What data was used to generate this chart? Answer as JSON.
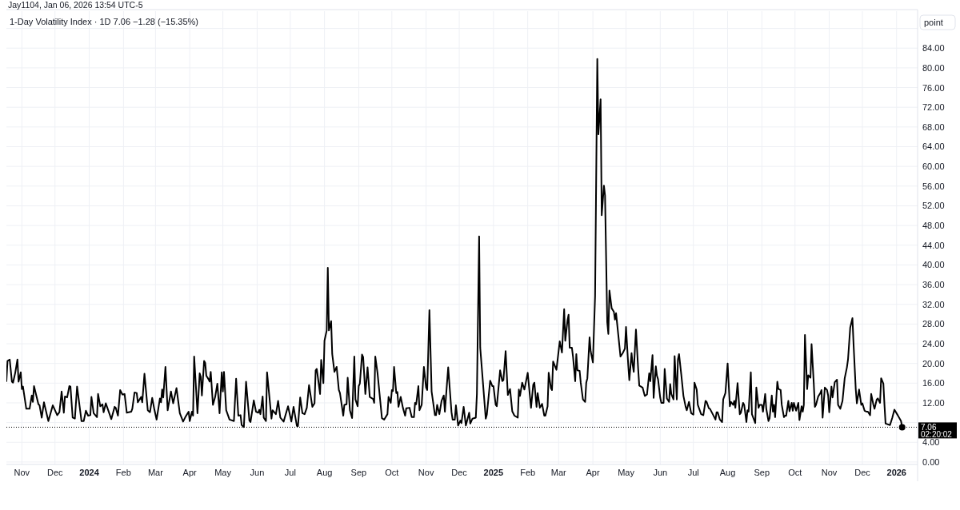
{
  "chart_data": {
    "type": "line",
    "title": "1-Day Volatility Index · 1D 7.06 −1.28 (−15.35%)",
    "subtitle": "Jay1104, Jan 06, 2026 13:54 UTC-5",
    "ylabel": "point",
    "annotations": [
      "02:20:02"
    ],
    "xlim": [
      "2023-10-18",
      "2026-01-20"
    ],
    "xticks": [
      {
        "value": "2023-11-01",
        "label": "Nov"
      },
      {
        "value": "2023-12-01",
        "label": "Dec"
      },
      {
        "value": "2024-01-01",
        "label": "2024"
      },
      {
        "value": "2024-02-01",
        "label": "Feb"
      },
      {
        "value": "2024-03-01",
        "label": "Mar"
      },
      {
        "value": "2024-04-01",
        "label": "Apr"
      },
      {
        "value": "2024-05-01",
        "label": "May"
      },
      {
        "value": "2024-06-01",
        "label": "Jun"
      },
      {
        "value": "2024-07-01",
        "label": "Jul"
      },
      {
        "value": "2024-08-01",
        "label": "Aug"
      },
      {
        "value": "2024-09-01",
        "label": "Sep"
      },
      {
        "value": "2024-10-01",
        "label": "Oct"
      },
      {
        "value": "2024-11-01",
        "label": "Nov"
      },
      {
        "value": "2024-12-01",
        "label": "Dec"
      },
      {
        "value": "2025-01-01",
        "label": "2025"
      },
      {
        "value": "2025-02-01",
        "label": "Feb"
      },
      {
        "value": "2025-03-01",
        "label": "Mar"
      },
      {
        "value": "2025-04-01",
        "label": "Apr"
      },
      {
        "value": "2025-05-01",
        "label": "May"
      },
      {
        "value": "2025-06-01",
        "label": "Jun"
      },
      {
        "value": "2025-07-01",
        "label": "Jul"
      },
      {
        "value": "2025-08-01",
        "label": "Aug"
      },
      {
        "value": "2025-09-01",
        "label": "Sep"
      },
      {
        "value": "2025-10-01",
        "label": "Oct"
      },
      {
        "value": "2025-11-01",
        "label": "Nov"
      },
      {
        "value": "2025-12-01",
        "label": "Dec"
      },
      {
        "value": "2026-01-01",
        "label": "2026"
      }
    ],
    "ylim": [
      -0.5,
      91.5
    ],
    "yticks": [
      {
        "value": 0,
        "label": "0.00"
      },
      {
        "value": 4,
        "label": "4.00"
      },
      {
        "value": 8,
        "label": null
      },
      {
        "value": 12,
        "label": "12.00"
      },
      {
        "value": 16,
        "label": "16.00"
      },
      {
        "value": 20,
        "label": "20.00"
      },
      {
        "value": 24,
        "label": "24.00"
      },
      {
        "value": 28,
        "label": "28.00"
      },
      {
        "value": 32,
        "label": "32.00"
      },
      {
        "value": 36,
        "label": "36.00"
      },
      {
        "value": 40,
        "label": "40.00"
      },
      {
        "value": 44,
        "label": "44.00"
      },
      {
        "value": 48,
        "label": "48.00"
      },
      {
        "value": 52,
        "label": "52.00"
      },
      {
        "value": 56,
        "label": "56.00"
      },
      {
        "value": 60,
        "label": "60.00"
      },
      {
        "value": 64,
        "label": "64.00"
      },
      {
        "value": 68,
        "label": "68.00"
      },
      {
        "value": 72,
        "label": "72.00"
      },
      {
        "value": 76,
        "label": "76.00"
      },
      {
        "value": 80,
        "label": "80.00"
      },
      {
        "value": 84,
        "label": "84.00"
      },
      {
        "value": 88,
        "label": null
      }
    ],
    "grid": true,
    "ref_lines": [
      {
        "axis": "y",
        "value": 7.06,
        "label": "7.06",
        "color": "#000000",
        "line_style": "dotted"
      }
    ],
    "series": [
      {
        "color": "#000000",
        "x": [
          "2023-10-18",
          "2023-10-19",
          "2023-10-21",
          "2023-10-23",
          "2023-10-24",
          "2023-10-26",
          "2023-10-28",
          "2023-10-29",
          "2023-10-31",
          "2023-11-01",
          "2023-11-02",
          "2023-11-05",
          "2023-11-08",
          "2023-11-10",
          "2023-11-11",
          "2023-11-12",
          "2023-11-16",
          "2023-11-17",
          "2023-11-19",
          "2023-11-21",
          "2023-11-25",
          "2023-11-29",
          "2023-12-03",
          "2023-12-05",
          "2023-12-07",
          "2023-12-09",
          "2023-12-10",
          "2023-12-12",
          "2023-12-14",
          "2023-12-15",
          "2023-12-17",
          "2023-12-19",
          "2023-12-21",
          "2023-12-25",
          "2023-12-27",
          "2023-12-29",
          "2023-12-31",
          "2024-01-02",
          "2024-01-03",
          "2024-01-05",
          "2024-01-08",
          "2024-01-09",
          "2024-01-11",
          "2024-01-13",
          "2024-01-14",
          "2024-01-16",
          "2024-01-21",
          "2024-01-24",
          "2024-01-25",
          "2024-01-27",
          "2024-01-29",
          "2024-01-31",
          "2024-02-02",
          "2024-02-04",
          "2024-02-08",
          "2024-02-09",
          "2024-02-11",
          "2024-02-13",
          "2024-02-14",
          "2024-02-17",
          "2024-02-18",
          "2024-02-20",
          "2024-02-23",
          "2024-02-25",
          "2024-02-27",
          "2024-02-29",
          "2024-03-02",
          "2024-03-05",
          "2024-03-06",
          "2024-03-07",
          "2024-03-08",
          "2024-03-10",
          "2024-03-12",
          "2024-03-15",
          "2024-03-17",
          "2024-03-20",
          "2024-03-23",
          "2024-03-26",
          "2024-03-28",
          "2024-03-31",
          "2024-04-01",
          "2024-04-03",
          "2024-04-04",
          "2024-04-05",
          "2024-04-08",
          "2024-04-10",
          "2024-04-11",
          "2024-04-12",
          "2024-04-14",
          "2024-04-15",
          "2024-04-16",
          "2024-04-18",
          "2024-04-19",
          "2024-04-20",
          "2024-04-22",
          "2024-04-24",
          "2024-04-26",
          "2024-04-28",
          "2024-04-30",
          "2024-05-01",
          "2024-05-02",
          "2024-05-04",
          "2024-05-07",
          "2024-05-11",
          "2024-05-13",
          "2024-05-15",
          "2024-05-17",
          "2024-05-18",
          "2024-05-20",
          "2024-05-22",
          "2024-05-25",
          "2024-05-26",
          "2024-05-29",
          "2024-05-31",
          "2024-06-02",
          "2024-06-03",
          "2024-06-04",
          "2024-06-06",
          "2024-06-07",
          "2024-06-09",
          "2024-06-10",
          "2024-06-14",
          "2024-06-15",
          "2024-06-18",
          "2024-06-20",
          "2024-06-22",
          "2024-06-25",
          "2024-06-29",
          "2024-07-02",
          "2024-07-04",
          "2024-07-07",
          "2024-07-08",
          "2024-07-10",
          "2024-07-12",
          "2024-07-14",
          "2024-07-16",
          "2024-07-18",
          "2024-07-21",
          "2024-07-23",
          "2024-07-24",
          "2024-07-25",
          "2024-07-28",
          "2024-07-29",
          "2024-07-31",
          "2024-08-01",
          "2024-08-03",
          "2024-08-04",
          "2024-08-05",
          "2024-08-07",
          "2024-08-08",
          "2024-08-10",
          "2024-08-12",
          "2024-08-14",
          "2024-08-15",
          "2024-08-18",
          "2024-08-19",
          "2024-08-21",
          "2024-08-22",
          "2024-08-24",
          "2024-08-26",
          "2024-08-28",
          "2024-08-29",
          "2024-08-31",
          "2024-09-01",
          "2024-09-02",
          "2024-09-04",
          "2024-09-05",
          "2024-09-07",
          "2024-09-09",
          "2024-09-11",
          "2024-09-14",
          "2024-09-15",
          "2024-09-16",
          "2024-09-18",
          "2024-09-22",
          "2024-09-24",
          "2024-09-27",
          "2024-09-28",
          "2024-09-30",
          "2024-10-01",
          "2024-10-02",
          "2024-10-03",
          "2024-10-05",
          "2024-10-06",
          "2024-10-07",
          "2024-10-09",
          "2024-10-11",
          "2024-10-13",
          "2024-10-14",
          "2024-10-17",
          "2024-10-19",
          "2024-10-21",
          "2024-10-22",
          "2024-10-23",
          "2024-10-25",
          "2024-10-26",
          "2024-10-28",
          "2024-10-30",
          "2024-11-01",
          "2024-11-02",
          "2024-11-04",
          "2024-11-06",
          "2024-11-09",
          "2024-11-10",
          "2024-11-11",
          "2024-11-13",
          "2024-11-15",
          "2024-11-17",
          "2024-11-18",
          "2024-11-21",
          "2024-11-24",
          "2024-11-25",
          "2024-11-27",
          "2024-11-28",
          "2024-11-30",
          "2024-12-02",
          "2024-12-03",
          "2024-12-05",
          "2024-12-07",
          "2024-12-10",
          "2024-12-11",
          "2024-12-13",
          "2024-12-16",
          "2024-12-17",
          "2024-12-19",
          "2024-12-20",
          "2024-12-25",
          "2024-12-26",
          "2024-12-29",
          "2024-12-31",
          "2025-01-01",
          "2025-01-03",
          "2025-01-04",
          "2025-01-07",
          "2025-01-09",
          "2025-01-10",
          "2025-01-12",
          "2025-01-14",
          "2025-01-16",
          "2025-01-18",
          "2025-01-20",
          "2025-01-23",
          "2025-01-24",
          "2025-01-25",
          "2025-01-27",
          "2025-01-29",
          "2025-02-01",
          "2025-02-04",
          "2025-02-06",
          "2025-02-07",
          "2025-02-09",
          "2025-02-10",
          "2025-02-12",
          "2025-02-14",
          "2025-02-16",
          "2025-02-17",
          "2025-02-19",
          "2025-02-20",
          "2025-02-22",
          "2025-02-23",
          "2025-02-24",
          "2025-02-27",
          "2025-03-02",
          "2025-03-04",
          "2025-03-06",
          "2025-03-07",
          "2025-03-09",
          "2025-03-10",
          "2025-03-11",
          "2025-03-13",
          "2025-03-14",
          "2025-03-16",
          "2025-03-17",
          "2025-03-18",
          "2025-03-20",
          "2025-03-21",
          "2025-03-23",
          "2025-03-25",
          "2025-03-26",
          "2025-03-27",
          "2025-03-29",
          "2025-03-30",
          "2025-04-01",
          "2025-04-03",
          "2025-04-05",
          "2025-04-06",
          "2025-04-08",
          "2025-04-09",
          "2025-04-11",
          "2025-04-12",
          "2025-04-14",
          "2025-04-15",
          "2025-04-16",
          "2025-04-18",
          "2025-04-20",
          "2025-04-21",
          "2025-04-22",
          "2025-04-24",
          "2025-04-26",
          "2025-04-28",
          "2025-04-30",
          "2025-05-01",
          "2025-05-03",
          "2025-05-04",
          "2025-05-06",
          "2025-05-07",
          "2025-05-08",
          "2025-05-10",
          "2025-05-12",
          "2025-05-13",
          "2025-05-16",
          "2025-05-18",
          "2025-05-20",
          "2025-05-22",
          "2025-05-23",
          "2025-05-25",
          "2025-05-26",
          "2025-05-28",
          "2025-05-29",
          "2025-05-30",
          "2025-06-01",
          "2025-06-02",
          "2025-06-04",
          "2025-06-05",
          "2025-06-07",
          "2025-06-09",
          "2025-06-10",
          "2025-06-11",
          "2025-06-13",
          "2025-06-14",
          "2025-06-16",
          "2025-06-17",
          "2025-06-18",
          "2025-06-20",
          "2025-06-22",
          "2025-06-24",
          "2025-06-25",
          "2025-06-27",
          "2025-06-29",
          "2025-07-01",
          "2025-07-02",
          "2025-07-04",
          "2025-07-05",
          "2025-07-08",
          "2025-07-10",
          "2025-07-12",
          "2025-07-13",
          "2025-07-15",
          "2025-07-16",
          "2025-07-19",
          "2025-07-21",
          "2025-07-22",
          "2025-07-23",
          "2025-07-25",
          "2025-07-27",
          "2025-07-28",
          "2025-07-30",
          "2025-08-01",
          "2025-08-03",
          "2025-08-04",
          "2025-08-06",
          "2025-08-07",
          "2025-08-08",
          "2025-08-10",
          "2025-08-12",
          "2025-08-13",
          "2025-08-15",
          "2025-08-16",
          "2025-08-18",
          "2025-08-19",
          "2025-08-20",
          "2025-08-22",
          "2025-08-23",
          "2025-08-26",
          "2025-08-27",
          "2025-08-29",
          "2025-08-30",
          "2025-09-01",
          "2025-09-02",
          "2025-09-04",
          "2025-09-05",
          "2025-09-07",
          "2025-09-08",
          "2025-09-10",
          "2025-09-11",
          "2025-09-12",
          "2025-09-13",
          "2025-09-15",
          "2025-09-16",
          "2025-09-18",
          "2025-09-19",
          "2025-09-21",
          "2025-09-22",
          "2025-09-23",
          "2025-09-25",
          "2025-09-26",
          "2025-09-28",
          "2025-09-29",
          "2025-09-30",
          "2025-10-02",
          "2025-10-04",
          "2025-10-05",
          "2025-10-07",
          "2025-10-08",
          "2025-10-09",
          "2025-10-10",
          "2025-10-12",
          "2025-10-13",
          "2025-10-15",
          "2025-10-16",
          "2025-10-18",
          "2025-10-19",
          "2025-10-20",
          "2025-10-22",
          "2025-10-24",
          "2025-10-25",
          "2025-10-26",
          "2025-10-28",
          "2025-10-30",
          "2025-10-31",
          "2025-11-01",
          "2025-11-03",
          "2025-11-04",
          "2025-11-06",
          "2025-11-08",
          "2025-11-09",
          "2025-11-11",
          "2025-11-13",
          "2025-11-15",
          "2025-11-17",
          "2025-11-18",
          "2025-11-20",
          "2025-11-22",
          "2025-11-23",
          "2025-11-25",
          "2025-11-26",
          "2025-11-28",
          "2025-11-30",
          "2025-12-01",
          "2025-12-03",
          "2025-12-05",
          "2025-12-06",
          "2025-12-08",
          "2025-12-09",
          "2025-12-11",
          "2025-12-12",
          "2025-12-14",
          "2025-12-15",
          "2025-12-17",
          "2025-12-18",
          "2025-12-20",
          "2025-12-21",
          "2025-12-22",
          "2025-12-26",
          "2025-12-28",
          "2025-12-30",
          "2026-01-02",
          "2026-01-05",
          "2026-01-06"
        ],
        "values": [
          16.4,
          20.5,
          20.8,
          16.3,
          16.1,
          18.1,
          20.8,
          16.3,
          18.2,
          14.8,
          15.3,
          10.8,
          10.8,
          13.5,
          12.2,
          15.4,
          11.7,
          11.5,
          9.0,
          12.1,
          8.3,
          11.5,
          9.5,
          10.1,
          14.3,
          10.0,
          13.3,
          13.1,
          15.4,
          15.3,
          9.0,
          8.8,
          15.3,
          8.3,
          8.3,
          10.4,
          9.4,
          9.5,
          13.2,
          9.9,
          9.1,
          13.8,
          11.3,
          11.7,
          10.1,
          11.9,
          8.7,
          11.2,
          11.0,
          9.4,
          14.6,
          13.7,
          13.8,
          10.0,
          10.2,
          10.8,
          14.1,
          14.0,
          12.1,
          13.2,
          12.1,
          17.9,
          10.5,
          10.1,
          13.0,
          10.6,
          8.6,
          12.9,
          12.1,
          14.7,
          13.1,
          19.3,
          10.5,
          14.3,
          11.9,
          15.0,
          9.9,
          8.2,
          9.1,
          10.2,
          8.3,
          10.2,
          9.4,
          21.4,
          9.9,
          18.0,
          17.3,
          13.5,
          20.5,
          20.1,
          17.5,
          16.8,
          16.3,
          18.3,
          11.6,
          13.2,
          15.9,
          9.9,
          18.2,
          14.3,
          18.3,
          10.5,
          8.6,
          8.3,
          16.9,
          9.4,
          9.5,
          7.5,
          7.1,
          16.3,
          8.4,
          8.1,
          12.5,
          10.2,
          10.0,
          10.6,
          9.7,
          13.3,
          9.0,
          8.3,
          18.2,
          8.8,
          10.5,
          9.7,
          12.4,
          9.0,
          8.2,
          11.3,
          8.2,
          11.2,
          7.3,
          7.3,
          13.1,
          9.9,
          9.7,
          11.0,
          15.6,
          11.2,
          11.9,
          18.6,
          18.9,
          13.8,
          20.7,
          16.0,
          24.6,
          26.7,
          39.4,
          26.7,
          28.6,
          21.9,
          18.3,
          19.3,
          14.6,
          14.0,
          9.4,
          11.6,
          11.7,
          17.1,
          10.5,
          8.9,
          21.4,
          12.7,
          11.3,
          15.4,
          15.9,
          21.8,
          21.3,
          13.8,
          19.2,
          13.2,
          12.8,
          12.0,
          21.4,
          18.1,
          8.9,
          8.6,
          9.7,
          13.2,
          12.0,
          14.6,
          14.4,
          19.3,
          14.0,
          14.2,
          11.2,
          13.2,
          11.0,
          9.4,
          10.9,
          11.0,
          9.1,
          9.1,
          12.0,
          11.7,
          15.4,
          10.5,
          11.6,
          19.3,
          15.1,
          14.6,
          30.8,
          14.3,
          9.5,
          9.5,
          11.6,
          9.7,
          12.4,
          13.5,
          10.2,
          19.2,
          10.1,
          8.6,
          8.6,
          11.5,
          7.4,
          8.4,
          7.9,
          11.2,
          7.4,
          10.0,
          7.8,
          8.8,
          9.0,
          13.8,
          45.8,
          23.2,
          8.8,
          9.6,
          16.5,
          15.4,
          15.4,
          11.6,
          11.3,
          18.6,
          16.4,
          16.6,
          22.5,
          13.6,
          14.8,
          10.3,
          9.4,
          9.0,
          14.7,
          13.4,
          16.1,
          14.7,
          18.1,
          11.0,
          15.7,
          16.1,
          11.2,
          14.0,
          11.0,
          11.8,
          9.4,
          9.4,
          11.3,
          18.1,
          15.0,
          14.6,
          20.4,
          18.7,
          24.5,
          22.2,
          31.0,
          24.6,
          28.7,
          29.9,
          23.2,
          23.2,
          21.4,
          16.4,
          21.9,
          18.6,
          18.5,
          16.1,
          12.7,
          12.2,
          16.1,
          17.0,
          25.3,
          22.5,
          20.2,
          33.7,
          81.8,
          66.5,
          73.6,
          50.1,
          56.1,
          54.1,
          28.4,
          26.0,
          34.8,
          31.2,
          30.5,
          28.9,
          30.2,
          25.8,
          21.4,
          22.1,
          23.0,
          27.4,
          19.7,
          16.6,
          22.1,
          19.8,
          18.3,
          26.9,
          18.9,
          15.5,
          15.1,
          13.4,
          13.7,
          18.0,
          16.4,
          21.7,
          13.0,
          19.4,
          17.5,
          16.8,
          13.0,
          12.0,
          12.0,
          18.9,
          12.9,
          12.2,
          15.8,
          13.8,
          12.7,
          21.5,
          12.7,
          20.8,
          21.9,
          17.8,
          13.4,
          11.2,
          10.5,
          12.2,
          9.9,
          9.6,
          16.1,
          14.7,
          11.6,
          9.7,
          9.5,
          12.4,
          12.2,
          10.9,
          10.8,
          9.5,
          8.6,
          10.1,
          10.1,
          8.6,
          8.1,
          12.7,
          14.0,
          20.0,
          11.3,
          12.2,
          11.6,
          12.4,
          11.0,
          16.0,
          9.7,
          10.0,
          12.0,
          11.6,
          8.1,
          10.5,
          10.2,
          18.2,
          9.7,
          7.9,
          15.1,
          11.0,
          11.6,
          11.6,
          10.2,
          13.8,
          10.8,
          8.3,
          8.9,
          13.5,
          10.2,
          11.6,
          9.1,
          16.3,
          14.8,
          14.6,
          11.6,
          9.1,
          9.4,
          9.4,
          12.4,
          10.3,
          12.0,
          10.4,
          12.0,
          10.4,
          12.0,
          8.5,
          11.3,
          10.2,
          11.6,
          25.8,
          14.8,
          17.6,
          17.1,
          23.9,
          15.9,
          11.2,
          11.6,
          13.3,
          14.0,
          14.6,
          9.0,
          15.1,
          14.6,
          13.5,
          10.1,
          15.3,
          13.1,
          16.2,
          16.7,
          11.6,
          10.8,
          12.4,
          17.0,
          19.2,
          20.8,
          27.3,
          29.2,
          24.0,
          14.8,
          11.9,
          14.7,
          11.6,
          11.9,
          10.4,
          10.2,
          10.2,
          9.5,
          13.8,
          11.6,
          10.8,
          12.7,
          12.9,
          12.0,
          17.0,
          15.9,
          11.6,
          7.8,
          7.5,
          8.9,
          10.6,
          9.5,
          8.3,
          7.06
        ]
      },
      {
        "type": "scatter",
        "color": "#000000",
        "marker": "circle",
        "x": [
          "2026-01-06"
        ],
        "values": [
          7.06
        ]
      }
    ]
  }
}
